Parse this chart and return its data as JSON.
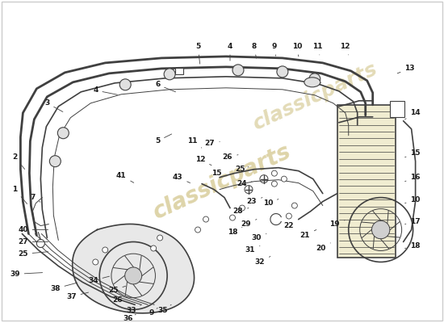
{
  "background_color": "#ffffff",
  "watermark_text": "classicparts",
  "watermark_color": "#c8b870",
  "line_color": "#404040",
  "label_color": "#1a1a1a",
  "label_fontsize": 6.5,
  "fig_width": 5.5,
  "fig_height": 4.0,
  "dpi": 100,
  "border_color": "#cccccc"
}
